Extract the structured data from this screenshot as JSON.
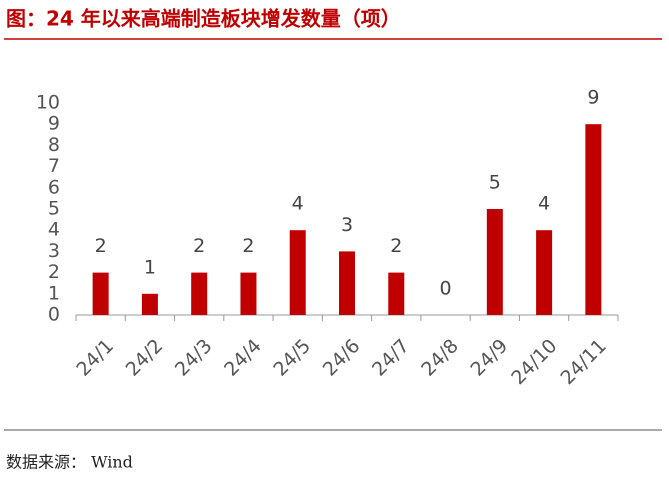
{
  "chart_data": {
    "type": "bar",
    "title": "图：24 年以来高端制造板块增发数量（项）",
    "categories": [
      "24/1",
      "24/2",
      "24/3",
      "24/4",
      "24/5",
      "24/6",
      "24/7",
      "24/8",
      "24/9",
      "24/10",
      "24/11"
    ],
    "values": [
      2,
      1,
      2,
      2,
      4,
      3,
      2,
      0,
      5,
      4,
      9
    ],
    "color": "#c00000",
    "ylim": [
      0,
      10
    ],
    "yticks": [
      0,
      1,
      2,
      3,
      4,
      5,
      6,
      7,
      8,
      9,
      10
    ],
    "grid": false,
    "source": "数据来源： Wind"
  }
}
